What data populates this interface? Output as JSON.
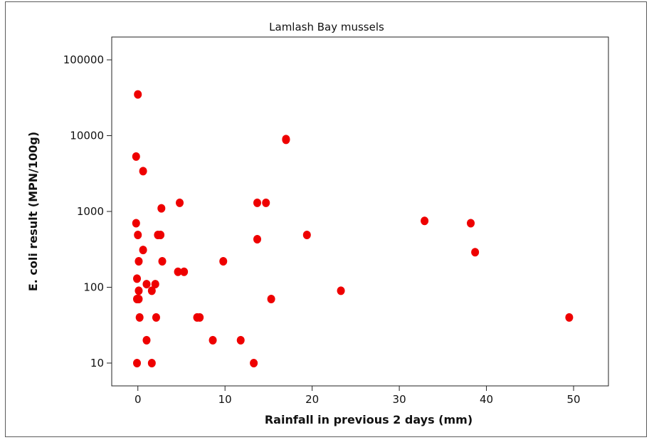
{
  "chart_data": {
    "type": "scatter",
    "title": "Lamlash Bay mussels",
    "xlabel": "Rainfall in previous 2 days (mm)",
    "ylabel": "E. coli result (MPN/100g)",
    "xlim": [
      -3,
      54
    ],
    "ylim": [
      5,
      200000
    ],
    "yscale": "log",
    "x_ticks": [
      0,
      10,
      20,
      30,
      40,
      50
    ],
    "x_tick_labels": [
      "0",
      "10",
      "20",
      "30",
      "40",
      "50"
    ],
    "y_ticks": [
      10,
      100,
      1000,
      10000,
      100000
    ],
    "y_tick_labels": [
      "10",
      "100",
      "1000",
      "10000",
      "100000"
    ],
    "grid": false,
    "marker_color": "#ee0000",
    "points": [
      {
        "x": 0.0,
        "y": 35000
      },
      {
        "x": -0.2,
        "y": 5300
      },
      {
        "x": 0.6,
        "y": 3400
      },
      {
        "x": -0.2,
        "y": 700
      },
      {
        "x": 0.0,
        "y": 490
      },
      {
        "x": 0.6,
        "y": 310
      },
      {
        "x": 0.1,
        "y": 220
      },
      {
        "x": -0.1,
        "y": 130
      },
      {
        "x": 0.1,
        "y": 90
      },
      {
        "x": -0.1,
        "y": 70
      },
      {
        "x": 0.1,
        "y": 70
      },
      {
        "x": 0.2,
        "y": 40
      },
      {
        "x": -0.1,
        "y": 10
      },
      {
        "x": 1.0,
        "y": 110
      },
      {
        "x": 1.0,
        "y": 20
      },
      {
        "x": 1.6,
        "y": 90
      },
      {
        "x": 1.6,
        "y": 10
      },
      {
        "x": 2.0,
        "y": 110
      },
      {
        "x": 2.1,
        "y": 40
      },
      {
        "x": 2.3,
        "y": 490
      },
      {
        "x": 2.6,
        "y": 490
      },
      {
        "x": 2.7,
        "y": 1100
      },
      {
        "x": 2.8,
        "y": 220
      },
      {
        "x": 4.6,
        "y": 160
      },
      {
        "x": 4.8,
        "y": 1300
      },
      {
        "x": 5.3,
        "y": 160
      },
      {
        "x": 6.8,
        "y": 40
      },
      {
        "x": 7.1,
        "y": 40
      },
      {
        "x": 8.6,
        "y": 20
      },
      {
        "x": 9.8,
        "y": 220
      },
      {
        "x": 11.8,
        "y": 20
      },
      {
        "x": 13.3,
        "y": 10
      },
      {
        "x": 13.7,
        "y": 1300
      },
      {
        "x": 13.7,
        "y": 430
      },
      {
        "x": 14.7,
        "y": 1300
      },
      {
        "x": 15.3,
        "y": 70
      },
      {
        "x": 17.0,
        "y": 9000
      },
      {
        "x": 17.0,
        "y": 8800
      },
      {
        "x": 19.4,
        "y": 490
      },
      {
        "x": 23.3,
        "y": 90
      },
      {
        "x": 32.9,
        "y": 750
      },
      {
        "x": 38.2,
        "y": 700
      },
      {
        "x": 38.7,
        "y": 290
      },
      {
        "x": 49.5,
        "y": 40
      }
    ]
  }
}
